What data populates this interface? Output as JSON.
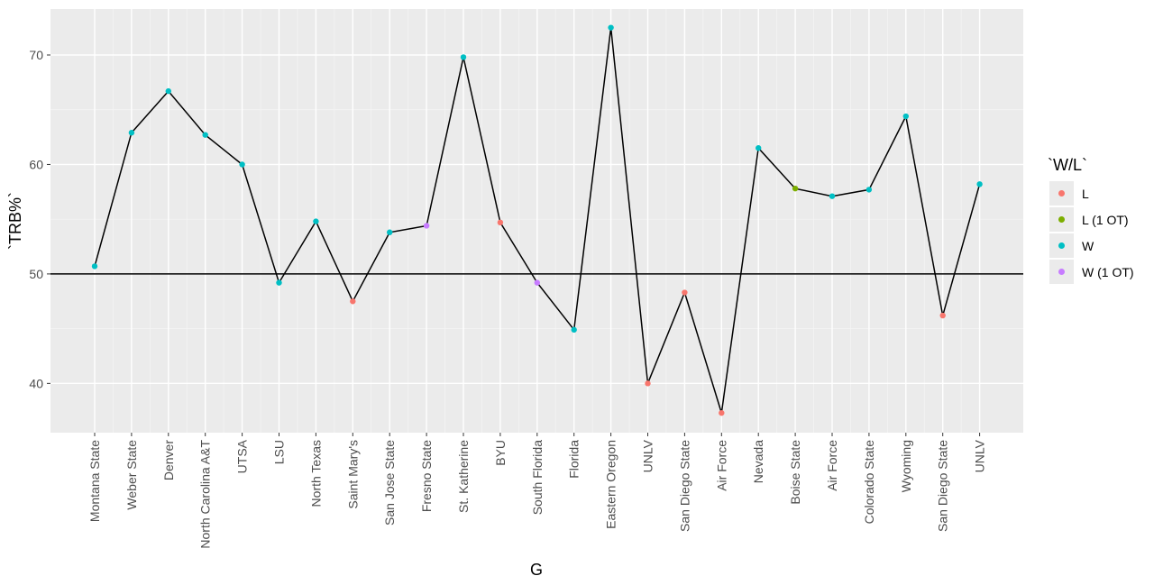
{
  "chart_data": {
    "type": "line",
    "xlabel": "G",
    "ylabel": "`TRB%`",
    "ylim": [
      35.5,
      74.2
    ],
    "yticks": [
      40,
      50,
      60,
      70
    ],
    "hline": 50,
    "grid": true,
    "legend_position": "right",
    "categories": [
      "Montana State",
      "Weber State",
      "Denver",
      "North Carolina A&T",
      "UTSA",
      "LSU",
      "North Texas",
      "Saint Mary's",
      "San Jose State",
      "Fresno State",
      "St. Katherine",
      "BYU",
      "South Florida",
      "Florida",
      "Eastern Oregon",
      "UNLV",
      "San Diego State",
      "Air Force",
      "Nevada",
      "Boise State",
      "Air Force",
      "Colorado State",
      "Wyoming",
      "San Diego State",
      "UNLV"
    ],
    "values": [
      50.7,
      62.9,
      66.7,
      62.7,
      60.0,
      49.2,
      54.8,
      47.5,
      53.8,
      54.4,
      69.8,
      54.7,
      49.2,
      44.9,
      72.5,
      40.0,
      48.3,
      37.3,
      61.5,
      57.8,
      57.1,
      57.7,
      64.4,
      46.2,
      58.2
    ],
    "wl": [
      "W",
      "W",
      "W",
      "W",
      "W",
      "W",
      "W",
      "L",
      "W",
      "W (1 OT)",
      "W",
      "L",
      "W (1 OT)",
      "W",
      "W",
      "L",
      "L",
      "L",
      "W",
      "L (1 OT)",
      "W",
      "W",
      "W",
      "L",
      "W"
    ],
    "legend": {
      "title": "`W/L`",
      "entries": [
        {
          "label": "L",
          "color": "#F8766D"
        },
        {
          "label": "L (1 OT)",
          "color": "#7CAE00"
        },
        {
          "label": "W",
          "color": "#00BFC4"
        },
        {
          "label": "W (1 OT)",
          "color": "#C77CFF"
        }
      ]
    },
    "colors": {
      "panel_bg": "#EBEBEB",
      "grid_major": "#FFFFFF",
      "line": "#000000"
    }
  }
}
